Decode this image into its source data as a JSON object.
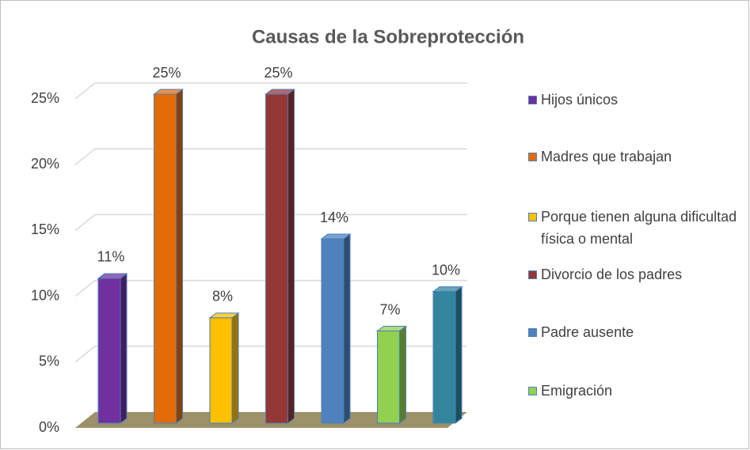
{
  "chart_data": {
    "type": "bar3d",
    "title": "Causas de la Sobreprotección",
    "categories": [
      "Hijos únicos",
      "Madres que trabajan",
      "Porque tienen alguna dificultad física o mental",
      "Divorcio de los padres",
      "Padre ausente",
      "Emigración",
      null
    ],
    "values": [
      11,
      25,
      8,
      25,
      14,
      7,
      10
    ],
    "value_labels": [
      "11%",
      "25%",
      "8%",
      "25%",
      "14%",
      "7%",
      "10%"
    ],
    "colors": [
      "#7030a0",
      "#e36c09",
      "#ffc000",
      "#953735",
      "#4f81bd",
      "#92d050",
      "#31859c"
    ],
    "ylim": [
      0,
      25
    ],
    "yticks": [
      {
        "value": 0,
        "label": "0%"
      },
      {
        "value": 5,
        "label": "5%"
      },
      {
        "value": 10,
        "label": "10%"
      },
      {
        "value": 15,
        "label": "15%"
      },
      {
        "value": 20,
        "label": "20%"
      },
      {
        "value": 25,
        "label": "25%"
      }
    ],
    "grid": true,
    "legend": "right"
  }
}
